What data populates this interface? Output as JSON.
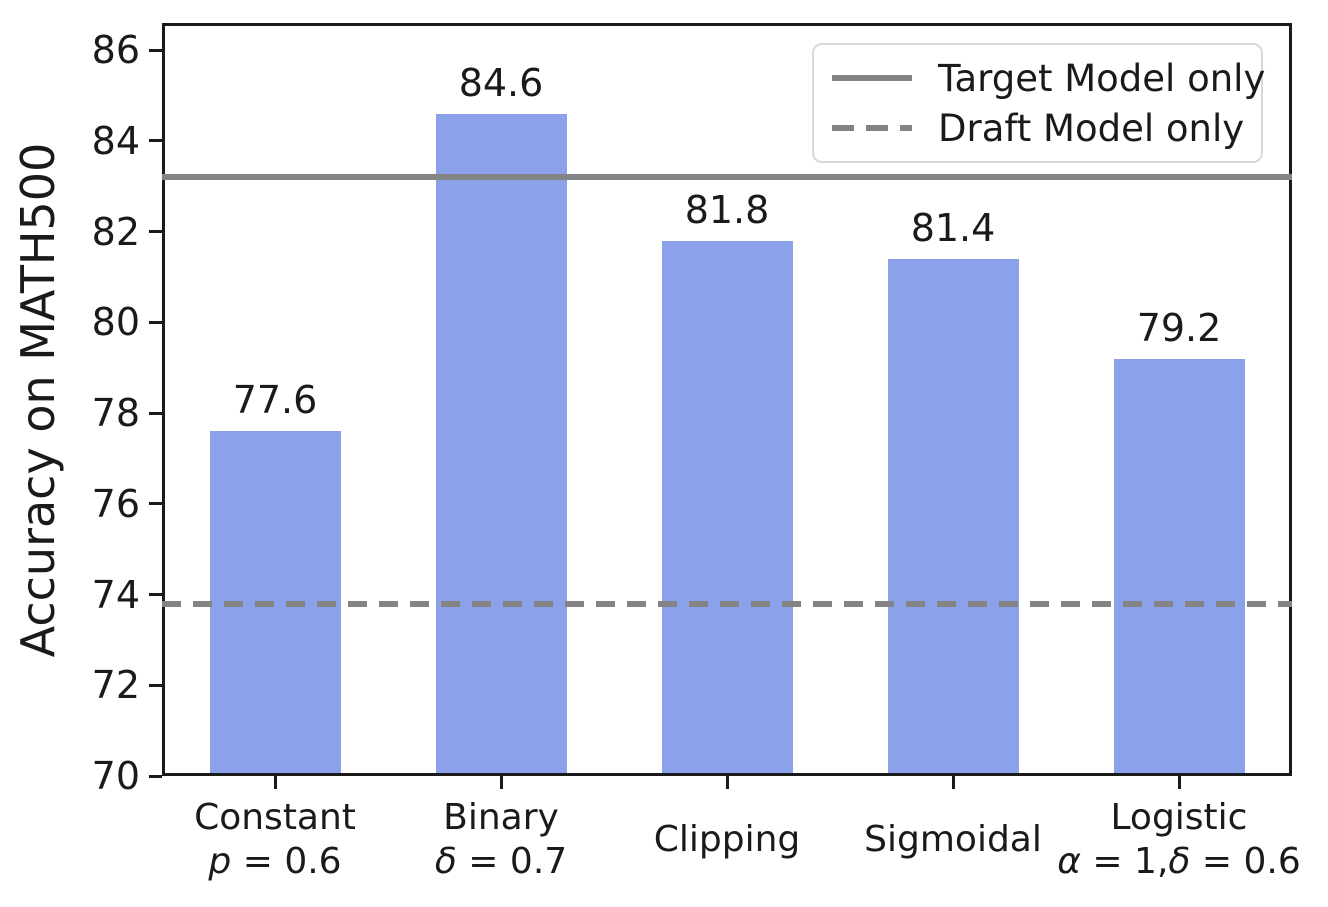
{
  "chart_data": {
    "type": "bar",
    "title": "",
    "xlabel": "",
    "ylabel": "Accuracy on MATH500",
    "ylim": [
      70,
      86.6
    ],
    "yticks": [
      70,
      72,
      74,
      76,
      78,
      80,
      82,
      84,
      86
    ],
    "grid": false,
    "legend_position": "upper right",
    "categories": [
      {
        "label": "Constant",
        "sub": [
          {
            "text": "p",
            "italic": true
          },
          {
            "text": " = 0.6",
            "italic": false
          }
        ]
      },
      {
        "label": "Binary",
        "sub": [
          {
            "text": "δ",
            "italic": true
          },
          {
            "text": " = 0.7",
            "italic": false
          }
        ]
      },
      {
        "label": "Clipping",
        "sub": []
      },
      {
        "label": "Sigmoidal",
        "sub": []
      },
      {
        "label": "Logistic",
        "sub": [
          {
            "text": "α",
            "italic": true
          },
          {
            "text": " = 1,",
            "italic": false
          },
          {
            "text": "δ",
            "italic": true
          },
          {
            "text": " = 0.6",
            "italic": false
          }
        ]
      }
    ],
    "values": [
      77.6,
      84.6,
      81.8,
      81.4,
      79.2
    ],
    "value_labels": [
      "77.6",
      "84.6",
      "81.8",
      "81.4",
      "79.2"
    ],
    "reference_lines": [
      {
        "name": "Target Model only",
        "value": 83.2,
        "style": "solid"
      },
      {
        "name": "Draft Model only",
        "value": 73.8,
        "style": "dashed"
      }
    ],
    "colors": {
      "bar": "#8ba1e9",
      "reference_line": "#848484",
      "axis": "#1a1a1a",
      "text": "#1a1a1a",
      "legend_border": "#d9d9d9"
    }
  }
}
